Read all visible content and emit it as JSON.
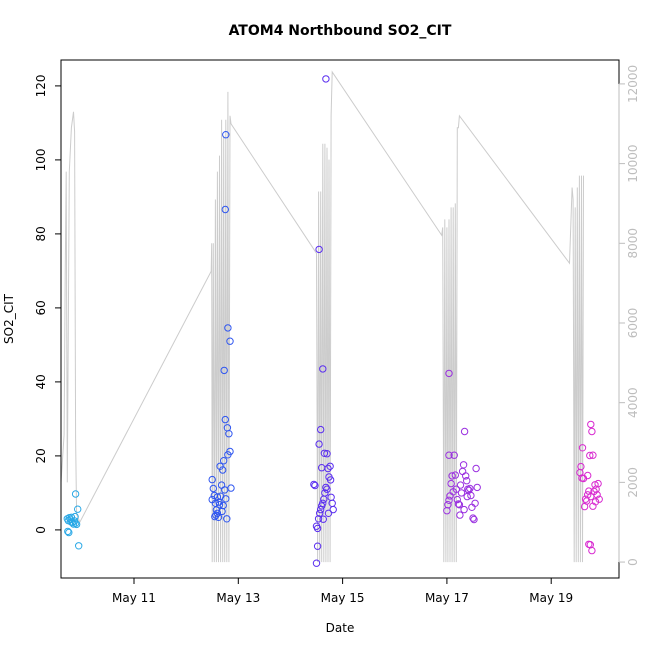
{
  "chart_data": {
    "type": "scatter",
    "title": "ATOM4 Northbound SO2_CIT",
    "xlabel": "Date",
    "ylabel": "SO2_CIT",
    "xlim": [
      9.6,
      20.3
    ],
    "ylim": [
      -13,
      127
    ],
    "y2lim": [
      -400,
      12600
    ],
    "x_ticks": [
      {
        "value": 11,
        "label": "May 11"
      },
      {
        "value": 13,
        "label": "May 13"
      },
      {
        "value": 15,
        "label": "May 15"
      },
      {
        "value": 17,
        "label": "May 17"
      },
      {
        "value": 19,
        "label": "May 19"
      }
    ],
    "y_ticks": [
      {
        "value": 0,
        "label": "0"
      },
      {
        "value": 20,
        "label": "20"
      },
      {
        "value": 40,
        "label": "40"
      },
      {
        "value": 60,
        "label": "60"
      },
      {
        "value": 80,
        "label": "80"
      },
      {
        "value": 100,
        "label": "100"
      },
      {
        "value": 120,
        "label": "120"
      }
    ],
    "y2_ticks": [
      {
        "value": 0,
        "label": "0"
      },
      {
        "value": 2000,
        "label": "2000"
      },
      {
        "value": 4000,
        "label": "4000"
      },
      {
        "value": 6000,
        "label": "6000"
      },
      {
        "value": 8000,
        "label": "8000"
      },
      {
        "value": 10000,
        "label": "10000"
      },
      {
        "value": 12000,
        "label": "12000"
      }
    ],
    "grid": false,
    "series": [
      {
        "color": "#29a8e6",
        "points": [
          [
            9.72,
            3.0
          ],
          [
            9.74,
            2.5
          ],
          [
            9.76,
            3.3
          ],
          [
            9.78,
            2.9
          ],
          [
            9.8,
            3.4
          ],
          [
            9.82,
            2.0
          ],
          [
            9.84,
            1.6
          ],
          [
            9.86,
            2.4
          ],
          [
            9.88,
            1.8
          ],
          [
            9.9,
            1.5
          ],
          [
            9.75,
            -0.7
          ],
          [
            9.73,
            -0.4
          ],
          [
            9.92,
            5.6
          ],
          [
            9.88,
            9.7
          ],
          [
            9.94,
            -4.3
          ],
          [
            9.87,
            3.6
          ],
          [
            9.79,
            2.2
          ]
        ]
      },
      {
        "color": "#2f56f0",
        "points": [
          [
            12.5,
            13.6
          ],
          [
            12.52,
            11.2
          ],
          [
            12.54,
            9.3
          ],
          [
            12.5,
            8.2
          ],
          [
            12.56,
            7.2
          ],
          [
            12.58,
            5.4
          ],
          [
            12.6,
            4.5
          ],
          [
            12.55,
            3.6
          ],
          [
            12.62,
            3.4
          ],
          [
            12.64,
            6.8
          ],
          [
            12.66,
            9.1
          ],
          [
            12.68,
            12.1
          ],
          [
            12.65,
            17.2
          ],
          [
            12.7,
            16.2
          ],
          [
            12.72,
            18.7
          ],
          [
            12.74,
            10.8
          ],
          [
            12.76,
            8.4
          ],
          [
            12.71,
            6.6
          ],
          [
            12.78,
            3.0
          ],
          [
            12.8,
            20.3
          ],
          [
            12.82,
            26.0
          ],
          [
            12.79,
            27.6
          ],
          [
            12.84,
            21.2
          ],
          [
            12.86,
            11.3
          ],
          [
            12.75,
            29.8
          ],
          [
            12.73,
            43.1
          ],
          [
            12.8,
            54.6
          ],
          [
            12.84,
            51.0
          ],
          [
            12.75,
            86.6
          ],
          [
            12.76,
            106.8
          ],
          [
            12.6,
            8.9
          ],
          [
            12.63,
            7.5
          ],
          [
            12.69,
            5.0
          ],
          [
            12.57,
            4.0
          ]
        ]
      },
      {
        "color": "#5a2ef0",
        "points": [
          [
            14.45,
            12.3
          ],
          [
            14.47,
            12.0
          ],
          [
            14.5,
            1.0
          ],
          [
            14.52,
            0.4
          ],
          [
            14.54,
            3.0
          ],
          [
            14.56,
            4.5
          ],
          [
            14.58,
            5.5
          ],
          [
            14.6,
            6.5
          ],
          [
            14.62,
            7.2
          ],
          [
            14.64,
            8.3
          ],
          [
            14.66,
            10.0
          ],
          [
            14.68,
            11.5
          ],
          [
            14.7,
            11.0
          ],
          [
            14.72,
            16.6
          ],
          [
            14.74,
            14.3
          ],
          [
            14.76,
            17.2
          ],
          [
            14.78,
            8.8
          ],
          [
            14.8,
            7.2
          ],
          [
            14.82,
            5.5
          ],
          [
            14.6,
            16.8
          ],
          [
            14.65,
            20.7
          ],
          [
            14.7,
            20.6
          ],
          [
            14.55,
            23.2
          ],
          [
            14.58,
            27.1
          ],
          [
            14.55,
            75.8
          ],
          [
            14.62,
            43.5
          ],
          [
            14.68,
            121.9
          ],
          [
            14.52,
            -4.4
          ],
          [
            14.5,
            -9.0
          ],
          [
            14.73,
            4.5
          ],
          [
            14.63,
            2.9
          ],
          [
            14.77,
            13.5
          ]
        ]
      },
      {
        "color": "#9a30e0",
        "points": [
          [
            17.0,
            5.2
          ],
          [
            17.02,
            6.8
          ],
          [
            17.04,
            8.0
          ],
          [
            17.06,
            9.2
          ],
          [
            17.08,
            12.5
          ],
          [
            17.1,
            14.6
          ],
          [
            17.12,
            10.3
          ],
          [
            17.14,
            20.2
          ],
          [
            17.16,
            14.8
          ],
          [
            17.18,
            11.0
          ],
          [
            17.2,
            8.2
          ],
          [
            17.22,
            7.0
          ],
          [
            17.24,
            6.8
          ],
          [
            17.26,
            12.1
          ],
          [
            17.28,
            10.0
          ],
          [
            17.3,
            15.8
          ],
          [
            17.32,
            17.6
          ],
          [
            17.34,
            26.6
          ],
          [
            17.36,
            14.6
          ],
          [
            17.38,
            13.3
          ],
          [
            17.4,
            11.0
          ],
          [
            17.42,
            10.7
          ],
          [
            17.44,
            11.2
          ],
          [
            17.46,
            9.3
          ],
          [
            17.48,
            6.1
          ],
          [
            17.5,
            3.2
          ],
          [
            17.52,
            2.8
          ],
          [
            17.54,
            7.2
          ],
          [
            17.56,
            16.6
          ],
          [
            17.58,
            11.5
          ],
          [
            17.25,
            4.0
          ],
          [
            17.33,
            5.5
          ],
          [
            17.39,
            9.0
          ],
          [
            17.04,
            20.2
          ],
          [
            17.04,
            42.3
          ]
        ]
      },
      {
        "color": "#d82ad0",
        "points": [
          [
            19.55,
            15.5
          ],
          [
            19.57,
            17.1
          ],
          [
            19.59,
            14.0
          ],
          [
            19.6,
            22.2
          ],
          [
            19.62,
            13.9
          ],
          [
            19.64,
            6.3
          ],
          [
            19.66,
            8.3
          ],
          [
            19.68,
            7.8
          ],
          [
            19.7,
            9.5
          ],
          [
            19.72,
            10.5
          ],
          [
            19.74,
            20.1
          ],
          [
            19.76,
            28.5
          ],
          [
            19.78,
            26.6
          ],
          [
            19.8,
            20.2
          ],
          [
            19.82,
            10.4
          ],
          [
            19.84,
            12.2
          ],
          [
            19.86,
            11.0
          ],
          [
            19.88,
            9.5
          ],
          [
            19.9,
            12.5
          ],
          [
            19.92,
            8.3
          ],
          [
            19.72,
            -3.9
          ],
          [
            19.75,
            -4.0
          ],
          [
            19.78,
            -5.6
          ],
          [
            19.8,
            6.4
          ],
          [
            19.85,
            7.6
          ],
          [
            19.7,
            14.7
          ],
          [
            19.76,
            9.0
          ]
        ]
      }
    ],
    "secondary_series": {
      "color": "#cccccc",
      "comment_free": true,
      "points": [
        [
          9.6,
          2000
        ],
        [
          9.66,
          3200
        ],
        [
          9.68,
          7200
        ],
        [
          9.7,
          9800
        ],
        [
          9.72,
          2000
        ],
        [
          9.76,
          9800
        ],
        [
          9.8,
          10900
        ],
        [
          9.84,
          11300
        ],
        [
          9.86,
          10800
        ],
        [
          9.88,
          3100
        ],
        [
          9.9,
          1200
        ],
        [
          9.96,
          1000
        ],
        [
          12.48,
          7300
        ],
        [
          12.49,
          8000
        ],
        [
          12.5,
          0
        ],
        [
          12.52,
          8000
        ],
        [
          12.54,
          0
        ],
        [
          12.56,
          9100
        ],
        [
          12.58,
          0
        ],
        [
          12.6,
          9800
        ],
        [
          12.62,
          0
        ],
        [
          12.64,
          10200
        ],
        [
          12.66,
          0
        ],
        [
          12.68,
          11100
        ],
        [
          12.7,
          0
        ],
        [
          12.72,
          10700
        ],
        [
          12.74,
          0
        ],
        [
          12.76,
          11100
        ],
        [
          12.78,
          0
        ],
        [
          12.8,
          11800
        ],
        [
          12.82,
          0
        ],
        [
          12.84,
          11200
        ],
        [
          12.86,
          11000
        ],
        [
          14.5,
          7750
        ],
        [
          14.52,
          0
        ],
        [
          14.54,
          9300
        ],
        [
          14.56,
          0
        ],
        [
          14.58,
          9300
        ],
        [
          14.6,
          0
        ],
        [
          14.62,
          10500
        ],
        [
          14.64,
          0
        ],
        [
          14.66,
          10500
        ],
        [
          14.68,
          0
        ],
        [
          14.7,
          10400
        ],
        [
          14.72,
          0
        ],
        [
          14.74,
          10100
        ],
        [
          14.76,
          0
        ],
        [
          14.78,
          11200
        ],
        [
          14.8,
          12300
        ],
        [
          16.9,
          8200
        ],
        [
          16.92,
          8400
        ],
        [
          16.94,
          0
        ],
        [
          16.96,
          8600
        ],
        [
          16.98,
          0
        ],
        [
          17.0,
          8400
        ],
        [
          17.02,
          0
        ],
        [
          17.04,
          8600
        ],
        [
          17.06,
          0
        ],
        [
          17.08,
          8900
        ],
        [
          17.1,
          0
        ],
        [
          17.12,
          8900
        ],
        [
          17.14,
          0
        ],
        [
          17.16,
          9000
        ],
        [
          17.18,
          0
        ],
        [
          17.2,
          10900
        ],
        [
          17.22,
          10900
        ],
        [
          17.24,
          11200
        ],
        [
          19.35,
          7500
        ],
        [
          19.4,
          9400
        ],
        [
          19.42,
          9100
        ],
        [
          19.44,
          0
        ],
        [
          19.46,
          8900
        ],
        [
          19.48,
          0
        ],
        [
          19.5,
          9400
        ],
        [
          19.52,
          0
        ],
        [
          19.54,
          9700
        ],
        [
          19.56,
          0
        ],
        [
          19.58,
          9700
        ],
        [
          19.6,
          0
        ],
        [
          19.62,
          9700
        ]
      ]
    }
  }
}
